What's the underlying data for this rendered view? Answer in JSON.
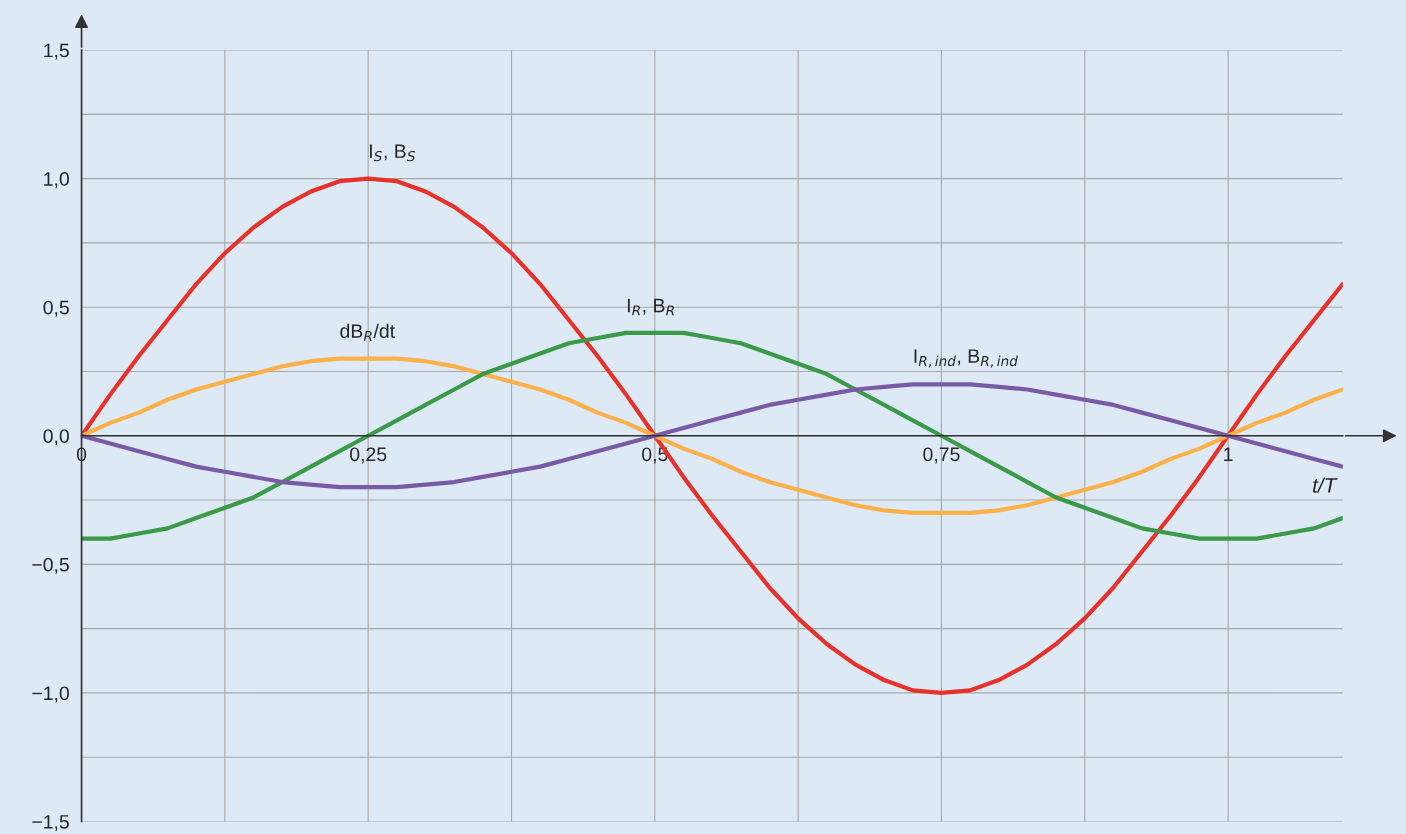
{
  "chart_data": {
    "type": "line",
    "xlabel": "t/T",
    "x": [
      0,
      0.025,
      0.05,
      0.075,
      0.1,
      0.125,
      0.15,
      0.175,
      0.2,
      0.225,
      0.25,
      0.275,
      0.3,
      0.325,
      0.35,
      0.375,
      0.4,
      0.425,
      0.45,
      0.475,
      0.5,
      0.525,
      0.55,
      0.575,
      0.6,
      0.625,
      0.65,
      0.675,
      0.7,
      0.725,
      0.75,
      0.775,
      0.8,
      0.825,
      0.85,
      0.875,
      0.9,
      0.925,
      0.95,
      0.975,
      1,
      1.025,
      1.05,
      1.075,
      1.1
    ],
    "series": [
      {
        "name": "I$_{S}$, B$_{S}$",
        "color": "#e8312a",
        "values": [
          0,
          0.16,
          0.31,
          0.45,
          0.59,
          0.71,
          0.81,
          0.89,
          0.95,
          0.99,
          1,
          0.99,
          0.95,
          0.89,
          0.81,
          0.71,
          0.59,
          0.45,
          0.31,
          0.16,
          0,
          -0.16,
          -0.31,
          -0.45,
          -0.59,
          -0.71,
          -0.81,
          -0.89,
          -0.95,
          -0.99,
          -1,
          -0.99,
          -0.95,
          -0.89,
          -0.81,
          -0.71,
          -0.59,
          -0.45,
          -0.31,
          -0.16,
          0,
          0.16,
          0.31,
          0.45,
          0.59
        ]
      },
      {
        "name": "dB$_{R}$/dt",
        "color": "#fbb04a",
        "values": [
          0,
          0.05,
          0.09,
          0.14,
          0.18,
          0.21,
          0.24,
          0.27,
          0.29,
          0.3,
          0.3,
          0.3,
          0.29,
          0.27,
          0.24,
          0.21,
          0.18,
          0.14,
          0.09,
          0.05,
          0,
          -0.05,
          -0.09,
          -0.14,
          -0.18,
          -0.21,
          -0.24,
          -0.27,
          -0.29,
          -0.3,
          -0.3,
          -0.3,
          -0.29,
          -0.27,
          -0.24,
          -0.21,
          -0.18,
          -0.14,
          -0.09,
          -0.05,
          0,
          0.05,
          0.09,
          0.14,
          0.18
        ]
      },
      {
        "name": "I$_{R}$, B$_{R}$",
        "color": "#3a9a48",
        "values": [
          -0.4,
          -0.4,
          -0.38,
          -0.36,
          -0.32,
          -0.28,
          -0.24,
          -0.18,
          -0.12,
          -0.06,
          0,
          0.06,
          0.12,
          0.18,
          0.24,
          0.28,
          0.32,
          0.36,
          0.38,
          0.4,
          0.4,
          0.4,
          0.38,
          0.36,
          0.32,
          0.28,
          0.24,
          0.18,
          0.12,
          0.06,
          0,
          -0.06,
          -0.12,
          -0.18,
          -0.24,
          -0.28,
          -0.32,
          -0.36,
          -0.38,
          -0.4,
          -0.4,
          -0.4,
          -0.38,
          -0.36,
          -0.32
        ]
      },
      {
        "name": "I$_{R,ind}$, B$_{R,ind}$",
        "color": "#7a5aa6",
        "values": [
          0,
          -0.03,
          -0.06,
          -0.09,
          -0.12,
          -0.14,
          -0.16,
          -0.18,
          -0.19,
          -0.2,
          -0.2,
          -0.2,
          -0.19,
          -0.18,
          -0.16,
          -0.14,
          -0.12,
          -0.09,
          -0.06,
          -0.03,
          0,
          0.03,
          0.06,
          0.09,
          0.12,
          0.14,
          0.16,
          0.18,
          0.19,
          0.2,
          0.2,
          0.2,
          0.19,
          0.18,
          0.16,
          0.14,
          0.12,
          0.09,
          0.06,
          0.03,
          0,
          -0.03,
          -0.06,
          -0.09,
          -0.12
        ]
      }
    ],
    "xlim": [
      0,
      1.1
    ],
    "ylim": [
      -1.5,
      1.5
    ],
    "xticks": [
      {
        "value": 0,
        "label": "0"
      },
      {
        "value": 0.125,
        "label": null
      },
      {
        "value": 0.25,
        "label": "0,25"
      },
      {
        "value": 0.375,
        "label": null
      },
      {
        "value": 0.5,
        "label": "0,5"
      },
      {
        "value": 0.625,
        "label": null
      },
      {
        "value": 0.75,
        "label": "0,75"
      },
      {
        "value": 0.875,
        "label": null
      },
      {
        "value": 1,
        "label": "1"
      }
    ],
    "yticks": [
      {
        "value": -1.5,
        "label": "−1,5"
      },
      {
        "value": -1.25,
        "label": null
      },
      {
        "value": -1,
        "label": "−1,0"
      },
      {
        "value": -0.75,
        "label": null
      },
      {
        "value": -0.5,
        "label": "−0,5"
      },
      {
        "value": -0.25,
        "label": null
      },
      {
        "value": 0,
        "label": "0,0"
      },
      {
        "value": 0.25,
        "label": null
      },
      {
        "value": 0.5,
        "label": "0,5"
      },
      {
        "value": 0.75,
        "label": null
      },
      {
        "value": 1,
        "label": "1,0"
      },
      {
        "value": 1.25,
        "label": null
      },
      {
        "value": 1.5,
        "label": "1,5"
      }
    ],
    "grid": true,
    "legend": false,
    "line_style": "solid",
    "marker": "none"
  }
}
